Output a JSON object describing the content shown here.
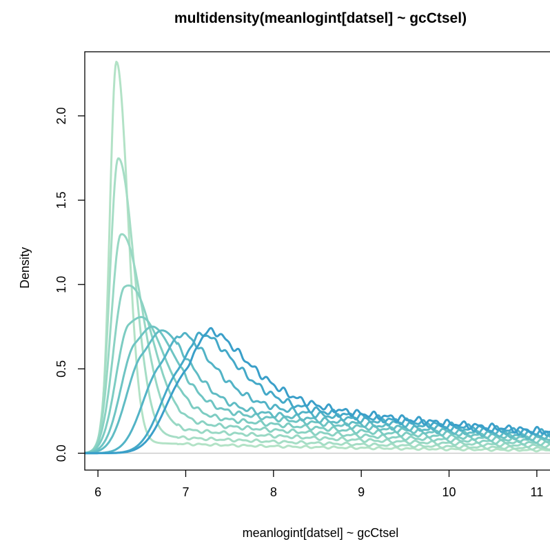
{
  "chart_data": {
    "type": "line",
    "title": "multidensity(meanlogint[datsel] ~ gcCtsel)",
    "xlabel": "meanlogint[datsel] ~ gcCtsel",
    "ylabel": "Density",
    "xlim": [
      5.85,
      11.15
    ],
    "ylim": [
      -0.1,
      2.38
    ],
    "xticks": [
      "6",
      "7",
      "8",
      "9",
      "10",
      "11"
    ],
    "yticks": [
      "0.0",
      "0.5",
      "1.0",
      "1.5",
      "2.0"
    ],
    "grid": false,
    "legend": "none",
    "baseline_color": "#c8c8c8",
    "curve_colors": [
      "#b2e2c6",
      "#a5ddc5",
      "#98d8c4",
      "#8ad2c3",
      "#7cccc2",
      "#6ec4c3",
      "#60bcc4",
      "#52b3c6",
      "#44a9c8",
      "#3a9fc9"
    ],
    "curve_params": [
      {
        "peak_x": 6.21,
        "peak_y": 2.31,
        "tail": 0.018
      },
      {
        "peak_x": 6.23,
        "peak_y": 1.73,
        "tail": 0.03
      },
      {
        "peak_x": 6.26,
        "peak_y": 1.27,
        "tail": 0.045
      },
      {
        "peak_x": 6.3,
        "peak_y": 0.95,
        "tail": 0.06
      },
      {
        "peak_x": 6.35,
        "peak_y": 0.72,
        "tail": 0.075
      },
      {
        "peak_x": 6.42,
        "peak_y": 0.6,
        "tail": 0.09
      },
      {
        "peak_x": 6.5,
        "peak_y": 0.53,
        "tail": 0.1
      },
      {
        "peak_x": 6.7,
        "peak_y": 0.46,
        "tail": 0.115
      },
      {
        "peak_x": 6.92,
        "peak_y": 0.44,
        "tail": 0.125
      },
      {
        "peak_x": 7.0,
        "peak_y": 0.43,
        "tail": 0.135
      }
    ]
  }
}
